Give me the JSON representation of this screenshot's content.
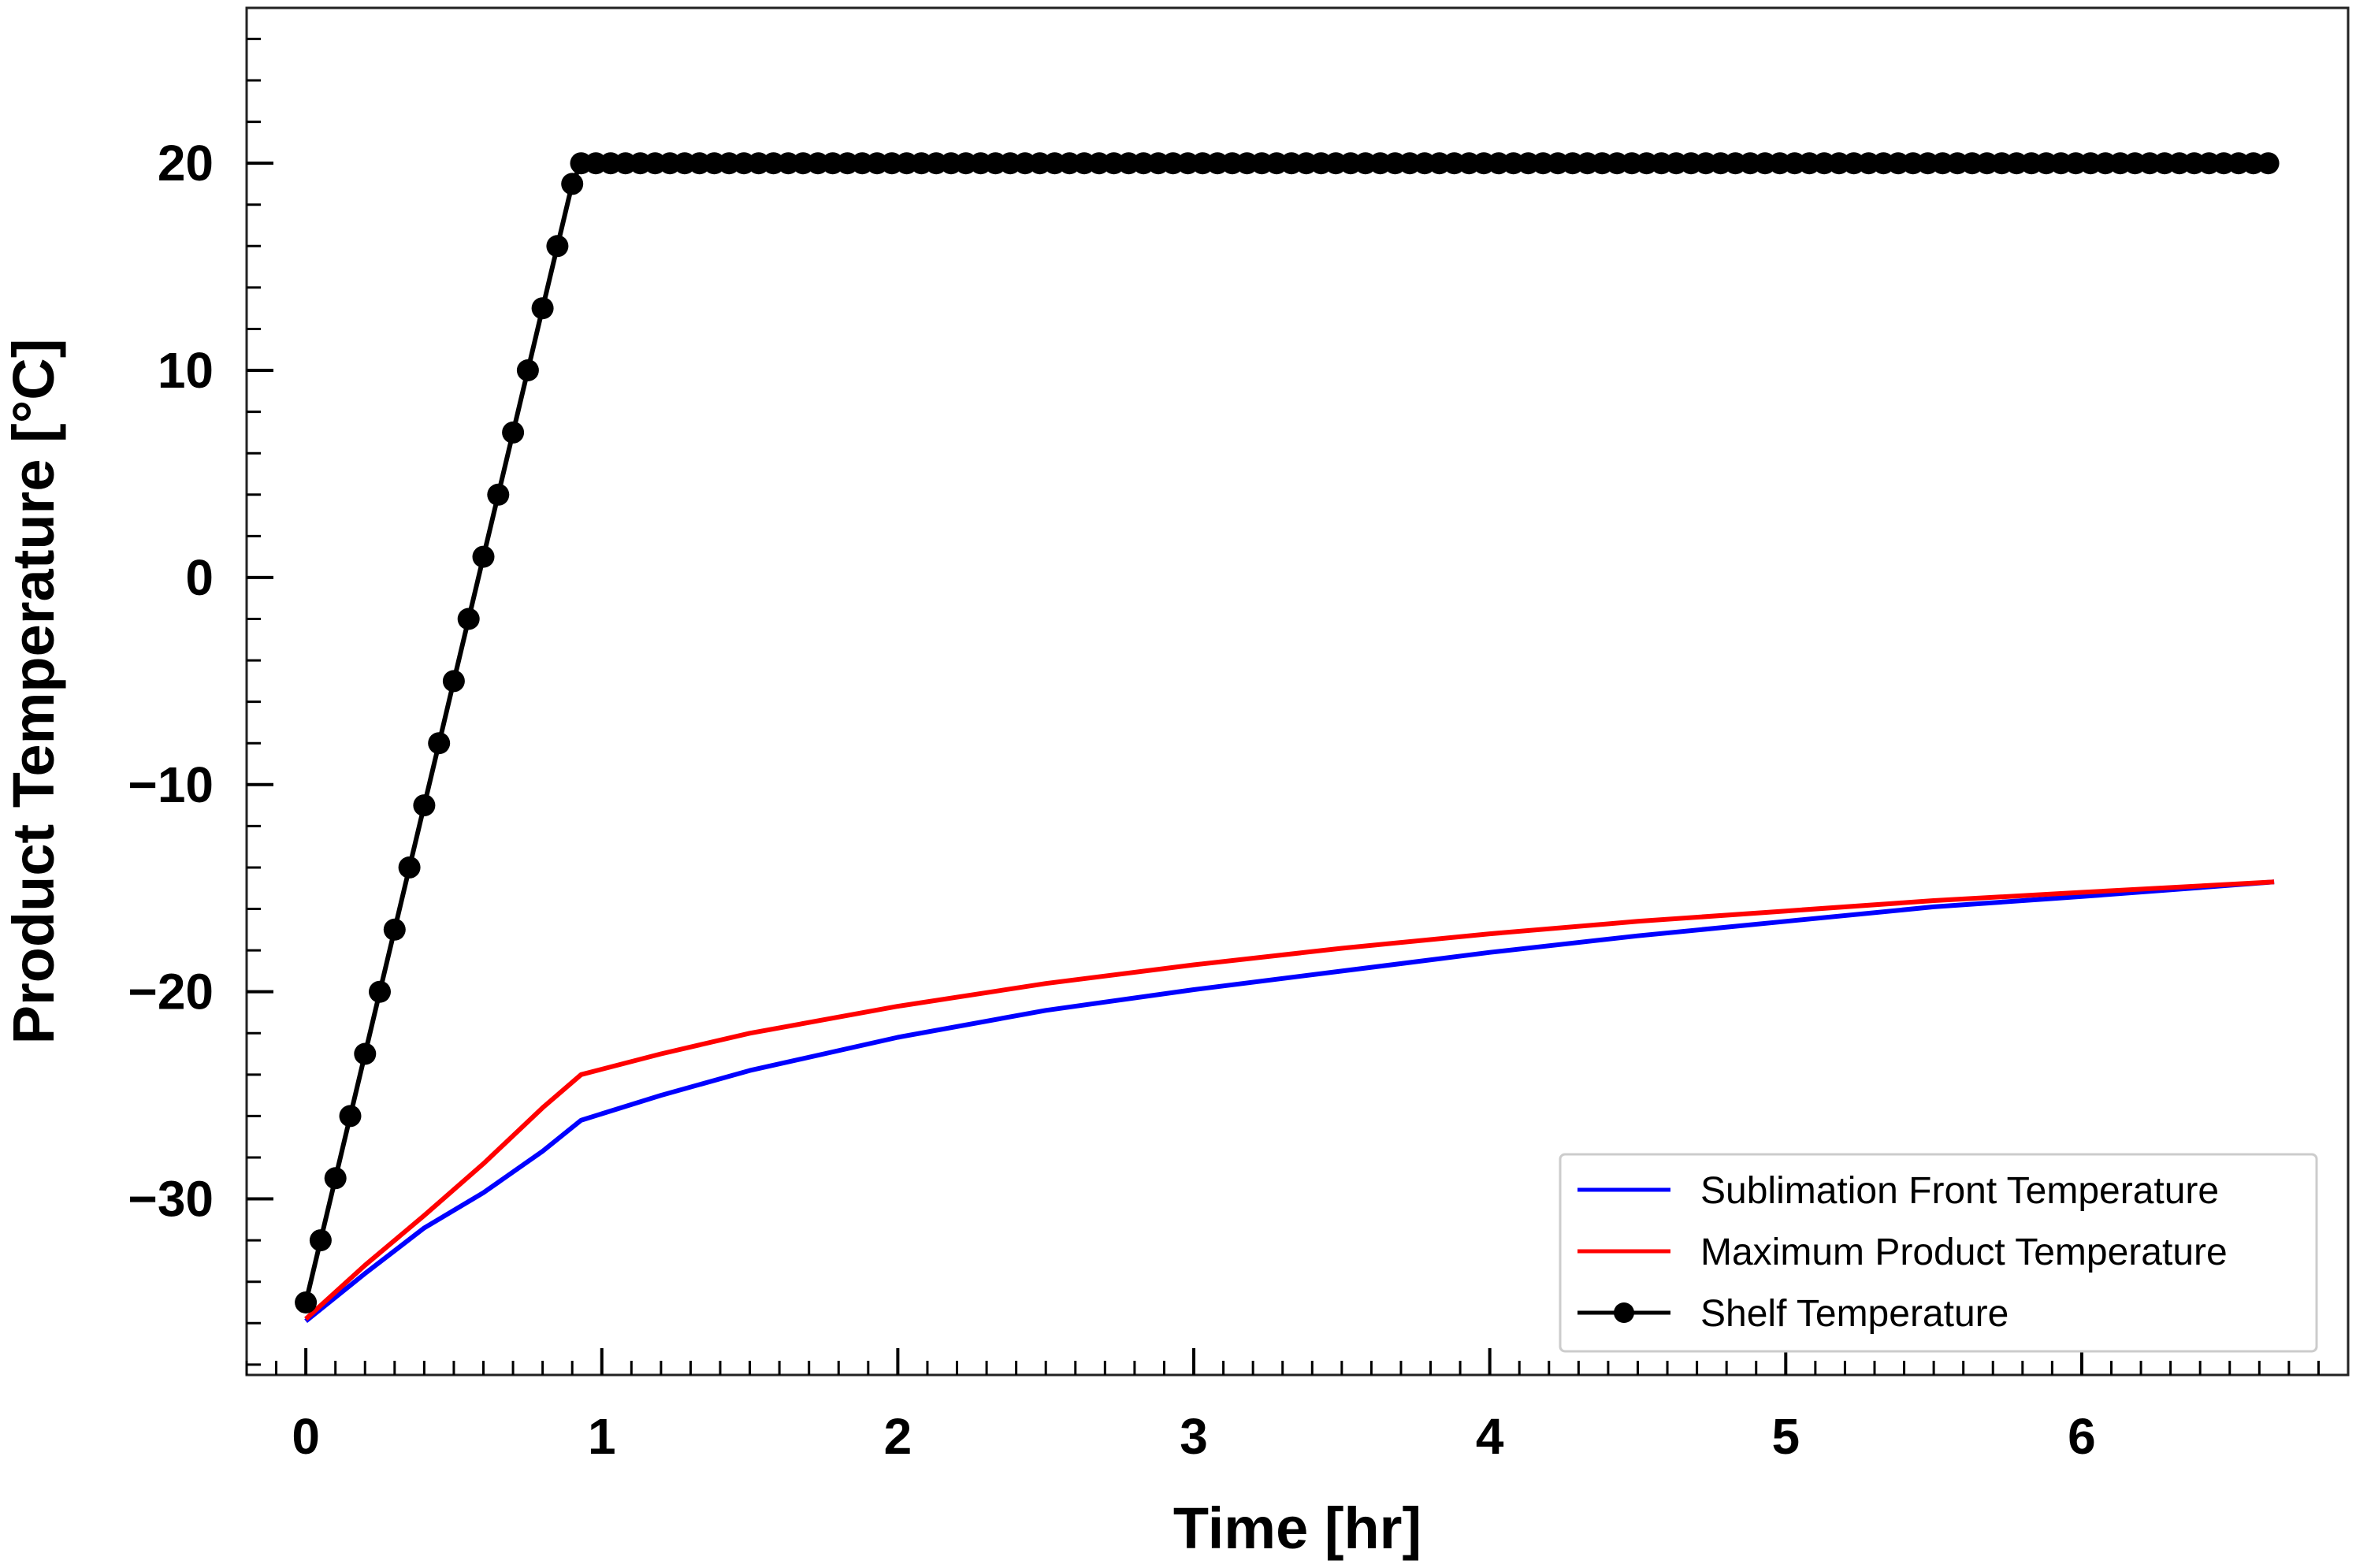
{
  "chart_data": {
    "type": "line",
    "title": "",
    "xlabel": "Time [hr]",
    "ylabel": "Product Temperature [°C]",
    "xlim": [
      -0.2,
      6.9
    ],
    "ylim": [
      -38.5,
      27.5
    ],
    "xticks": [
      0,
      1,
      2,
      3,
      4,
      5,
      6
    ],
    "xtick_labels": [
      "0",
      "1",
      "2",
      "3",
      "4",
      "5",
      "6"
    ],
    "yticks": [
      -30,
      -20,
      -10,
      0,
      10,
      20
    ],
    "ytick_labels": [
      "−30",
      "−20",
      "−10",
      "0",
      "10",
      "20"
    ],
    "grid": false,
    "legend_position": "lower-right",
    "series": [
      {
        "name": "Sublimation Front Temperature",
        "color": "#0000ff",
        "marker": "none",
        "x": [
          0,
          0.2,
          0.4,
          0.6,
          0.8,
          0.93,
          1.2,
          1.5,
          2.0,
          2.5,
          3.0,
          3.5,
          4.0,
          4.5,
          5.0,
          5.5,
          6.0,
          6.65
        ],
        "y": [
          -35.9,
          -33.6,
          -31.4,
          -29.7,
          -27.7,
          -26.2,
          -25.0,
          -23.8,
          -22.2,
          -20.9,
          -19.9,
          -19.0,
          -18.1,
          -17.3,
          -16.6,
          -15.9,
          -15.4,
          -14.7
        ]
      },
      {
        "name": "Maximum Product Temperature",
        "color": "#ff0000",
        "marker": "none",
        "x": [
          0,
          0.2,
          0.4,
          0.6,
          0.8,
          0.93,
          1.2,
          1.5,
          2.0,
          2.5,
          3.0,
          3.5,
          4.0,
          4.5,
          5.0,
          5.5,
          6.0,
          6.65
        ],
        "y": [
          -35.8,
          -33.2,
          -30.8,
          -28.3,
          -25.6,
          -24.0,
          -23.0,
          -22.0,
          -20.7,
          -19.6,
          -18.7,
          -17.9,
          -17.2,
          -16.6,
          -16.1,
          -15.6,
          -15.2,
          -14.7
        ]
      },
      {
        "name": "Shelf Temperature",
        "color": "#000000",
        "marker": "circle",
        "ramp": {
          "x_start": 0,
          "x_end": 0.9,
          "y_start": -35,
          "y_end": 19,
          "step": 0.05
        },
        "plateau": {
          "x_start": 0.93,
          "x_end": 6.65,
          "y": 20,
          "step": 0.05
        }
      }
    ]
  }
}
